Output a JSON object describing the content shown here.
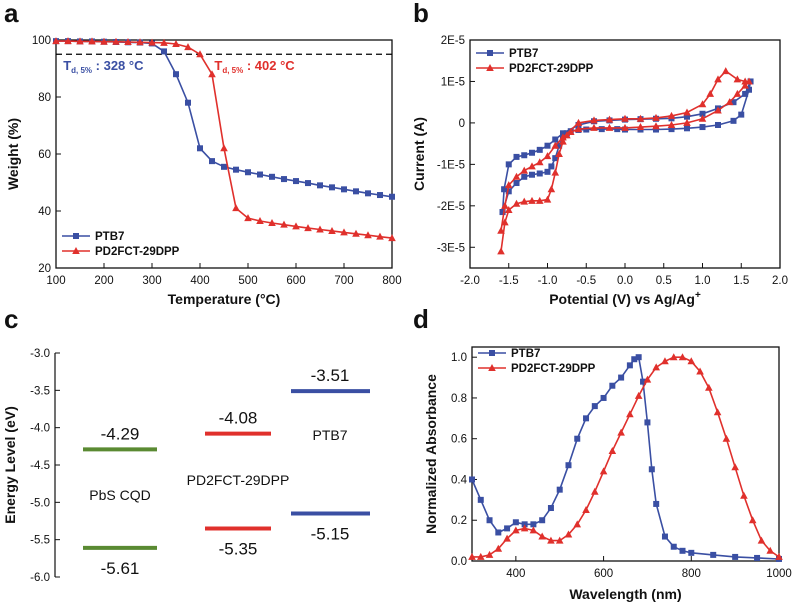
{
  "figure": {
    "panel_labels": [
      "a",
      "b",
      "c",
      "d"
    ]
  },
  "chart_data": [
    {
      "panel": "a",
      "type": "line",
      "xlabel": "Temperature (°C)",
      "ylabel": "Weight (%)",
      "xlim": [
        100,
        800
      ],
      "ylim": [
        20,
        100
      ],
      "xticks": [
        100,
        200,
        300,
        400,
        500,
        600,
        700,
        800
      ],
      "yticks": [
        20,
        40,
        60,
        80,
        100
      ],
      "reference_line": {
        "y": 95,
        "style": "dashed",
        "color": "#000000"
      },
      "annotations": [
        {
          "main": "T",
          "sub": "d, 5%",
          "rest": " : 328 °C",
          "color": "#3a4fa3",
          "x": 115,
          "y": 89.5
        },
        {
          "main": "T",
          "sub": "d, 5%",
          "rest": " : 402 °C",
          "color": "#e0302c",
          "x": 430,
          "y": 89.5
        }
      ],
      "legend_position": "bottom-left",
      "series": [
        {
          "name": "PTB7",
          "color": "#3a4fa3",
          "marker": "square",
          "x": [
            100,
            125,
            150,
            175,
            200,
            225,
            250,
            275,
            300,
            325,
            350,
            375,
            400,
            425,
            450,
            475,
            500,
            525,
            550,
            575,
            600,
            625,
            650,
            675,
            700,
            725,
            750,
            775,
            800
          ],
          "y": [
            99.6,
            99.6,
            99.5,
            99.5,
            99.4,
            99.3,
            99.2,
            99.1,
            98.8,
            96,
            88,
            78,
            62,
            57.5,
            55.5,
            54.5,
            53.6,
            52.8,
            52,
            51.2,
            50.5,
            49.8,
            49,
            48.3,
            47.6,
            46.9,
            46.2,
            45.6,
            45
          ]
        },
        {
          "name": "PD2FCT-29DPP",
          "color": "#e0302c",
          "marker": "triangle",
          "x": [
            100,
            125,
            150,
            175,
            200,
            225,
            250,
            275,
            300,
            325,
            350,
            375,
            400,
            425,
            450,
            475,
            500,
            525,
            550,
            575,
            600,
            625,
            650,
            675,
            700,
            725,
            750,
            775,
            800
          ],
          "y": [
            99.6,
            99.6,
            99.5,
            99.5,
            99.4,
            99.4,
            99.3,
            99.2,
            99.1,
            99,
            98.6,
            97.5,
            95,
            88,
            62,
            41,
            37.5,
            36.5,
            35.8,
            35.2,
            34.6,
            34,
            33.5,
            33,
            32.5,
            32,
            31.5,
            31,
            30.5
          ]
        }
      ]
    },
    {
      "panel": "b",
      "type": "line",
      "xlabel": "Potential (V) vs Ag/Ag",
      "xlabel_sup": "+",
      "ylabel": "Current (A)",
      "xlim": [
        -2.0,
        2.0
      ],
      "ylim": [
        -3.5e-05,
        2e-05
      ],
      "xticks": [
        -2.0,
        -1.5,
        -1.0,
        -0.5,
        0.0,
        0.5,
        1.0,
        1.5,
        2.0
      ],
      "xtick_labels": [
        "-2.0",
        "-1.5",
        "-1.0",
        "-0.5",
        "0.0",
        "0.5",
        "1.0",
        "1.5",
        "2.0"
      ],
      "yticks": [
        -3e-05,
        -2e-05,
        -1e-05,
        0,
        1e-05,
        2e-05
      ],
      "ytick_labels": [
        "-3E-5",
        "-2E-5",
        "-1E-5",
        "0",
        "1E-5",
        "2E-5"
      ],
      "legend_position": "top-left",
      "series": [
        {
          "name": "PTB7",
          "color": "#3a4fa3",
          "marker": "square",
          "x": [
            -1.58,
            -1.5,
            -1.4,
            -1.3,
            -1.2,
            -1.1,
            -1.0,
            -0.95,
            -0.9,
            -0.85,
            -0.8,
            -0.75,
            -0.7,
            -0.6,
            -0.5,
            -0.3,
            -0.1,
            0.0,
            0.2,
            0.4,
            0.6,
            0.8,
            1.0,
            1.2,
            1.4,
            1.5,
            1.6,
            1.62,
            1.55,
            1.4,
            1.2,
            1.0,
            0.8,
            0.6,
            0.4,
            0.2,
            0.0,
            -0.2,
            -0.4,
            -0.6,
            -0.8,
            -0.9,
            -1.0,
            -1.1,
            -1.2,
            -1.3,
            -1.4,
            -1.5,
            -1.56,
            -1.58
          ],
          "y": [
            -2.15e-05,
            -1.65e-05,
            -1.45e-05,
            -1.3e-05,
            -1.25e-05,
            -1.22e-05,
            -1.18e-05,
            -1.05e-05,
            -8.5e-06,
            -5.5e-06,
            -3.5e-06,
            -2.5e-06,
            -2e-06,
            -1.7e-06,
            -1.6e-06,
            -1.5e-06,
            -1.5e-06,
            -1.6e-06,
            -1.6e-06,
            -1.6e-06,
            -1.5e-06,
            -1.3e-06,
            -1e-06,
            -5e-07,
            5e-07,
            2e-06,
            8e-06,
            1e-05,
            7e-06,
            5e-06,
            3.5e-06,
            2.2e-06,
            1.5e-06,
            1.1e-06,
            1e-06,
            9e-07,
            8e-07,
            6e-07,
            4e-07,
            -5e-07,
            -2.5e-06,
            -4e-06,
            -5.5e-06,
            -6.5e-06,
            -7.2e-06,
            -7.8e-06,
            -8.2e-06,
            -1e-05,
            -1.6e-05,
            -2.15e-05
          ]
        },
        {
          "name": "PD2FCT-29DPP",
          "color": "#e0302c",
          "marker": "triangle",
          "x": [
            -1.6,
            -1.55,
            -1.5,
            -1.4,
            -1.3,
            -1.2,
            -1.1,
            -1.0,
            -0.95,
            -0.9,
            -0.85,
            -0.8,
            -0.75,
            -0.7,
            -0.6,
            -0.4,
            -0.2,
            0.0,
            0.2,
            0.4,
            0.6,
            0.8,
            1.0,
            1.2,
            1.35,
            1.45,
            1.55,
            1.6,
            1.55,
            1.45,
            1.3,
            1.2,
            1.1,
            1.0,
            0.8,
            0.6,
            0.4,
            0.2,
            0.0,
            -0.2,
            -0.4,
            -0.6,
            -0.8,
            -0.9,
            -1.0,
            -1.1,
            -1.2,
            -1.3,
            -1.4,
            -1.5,
            -1.55,
            -1.6
          ],
          "y": [
            -3.1e-05,
            -2.4e-05,
            -2.1e-05,
            -1.95e-05,
            -1.9e-05,
            -1.88e-05,
            -1.88e-05,
            -1.85e-05,
            -1.6e-05,
            -1.2e-05,
            -7.5e-06,
            -4.5e-06,
            -3e-06,
            -2.2e-06,
            -1.5e-06,
            -1.2e-06,
            -1.2e-06,
            -1.2e-06,
            -1e-06,
            -8e-07,
            -5e-07,
            0.0,
            1e-06,
            3e-06,
            5e-06,
            7e-06,
            9e-06,
            1e-05,
            1e-05,
            1.05e-05,
            1.25e-05,
            1.05e-05,
            7e-06,
            4.5e-06,
            2.5e-06,
            1.7e-06,
            1.2e-06,
            1e-06,
            1e-06,
            8e-07,
            6e-07,
            0.0,
            -3.5e-06,
            -5.5e-06,
            -8e-06,
            -9.5e-06,
            -1.05e-05,
            -1.15e-05,
            -1.3e-05,
            -1.5e-05,
            -2e-05,
            -2.6e-05
          ]
        }
      ]
    },
    {
      "panel": "c",
      "type": "bar",
      "ylabel": "Energy Level (eV)",
      "ylim": [
        -6.0,
        -3.0
      ],
      "yticks": [
        -6.0,
        -5.5,
        -5.0,
        -4.5,
        -4.0,
        -3.5,
        -3.0
      ],
      "ytick_labels": [
        "-6.0",
        "-5.5",
        "-5.0",
        "-4.5",
        "-4.0",
        "-3.5",
        "-3.0"
      ],
      "materials": [
        {
          "name": "PbS CQD",
          "color": "#5a8a32",
          "upper": -4.29,
          "lower": -5.61,
          "upper_label": "-4.29",
          "lower_label": "-5.61"
        },
        {
          "name": "PD2FCT-29DPP",
          "color": "#e0302c",
          "upper": -4.08,
          "lower": -5.35,
          "upper_label": "-4.08",
          "lower_label": "-5.35"
        },
        {
          "name": "PTB7",
          "color": "#3a4fa3",
          "upper": -3.51,
          "lower": -5.15,
          "upper_label": "-3.51",
          "lower_label": "-5.15"
        }
      ]
    },
    {
      "panel": "d",
      "type": "line",
      "xlabel": "Wavelength (nm)",
      "ylabel": "Normalized Absorbance",
      "xlim": [
        300,
        1000
      ],
      "ylim": [
        0,
        1.05
      ],
      "xticks": [
        400,
        600,
        800,
        1000
      ],
      "yticks": [
        0,
        0.2,
        0.4,
        0.6,
        0.8,
        1.0
      ],
      "ytick_labels": [
        "0.0",
        "0.2",
        "0.4",
        "0.6",
        "0.8",
        "1.0"
      ],
      "legend_position": "top-left",
      "series": [
        {
          "name": "PTB7",
          "color": "#3a4fa3",
          "marker": "square",
          "x": [
            300,
            320,
            340,
            360,
            380,
            400,
            420,
            440,
            460,
            480,
            500,
            520,
            540,
            560,
            580,
            600,
            620,
            640,
            660,
            670,
            680,
            690,
            700,
            710,
            720,
            740,
            760,
            780,
            800,
            850,
            900,
            950,
            1000
          ],
          "y": [
            0.4,
            0.3,
            0.2,
            0.14,
            0.16,
            0.19,
            0.18,
            0.18,
            0.2,
            0.26,
            0.35,
            0.47,
            0.6,
            0.7,
            0.76,
            0.8,
            0.86,
            0.9,
            0.96,
            0.99,
            1.0,
            0.88,
            0.68,
            0.45,
            0.28,
            0.12,
            0.07,
            0.05,
            0.04,
            0.03,
            0.02,
            0.015,
            0.01
          ]
        },
        {
          "name": "PD2FCT-29DPP",
          "color": "#e0302c",
          "marker": "triangle",
          "x": [
            300,
            320,
            340,
            360,
            380,
            400,
            420,
            440,
            460,
            480,
            500,
            520,
            540,
            560,
            580,
            600,
            620,
            640,
            660,
            680,
            700,
            720,
            740,
            760,
            780,
            800,
            820,
            840,
            860,
            880,
            900,
            920,
            940,
            960,
            980,
            1000
          ],
          "y": [
            0.02,
            0.02,
            0.03,
            0.06,
            0.11,
            0.15,
            0.16,
            0.15,
            0.12,
            0.1,
            0.1,
            0.13,
            0.18,
            0.25,
            0.34,
            0.44,
            0.54,
            0.63,
            0.72,
            0.81,
            0.89,
            0.95,
            0.98,
            1.0,
            1.0,
            0.98,
            0.93,
            0.85,
            0.73,
            0.6,
            0.46,
            0.32,
            0.2,
            0.1,
            0.05,
            0.02
          ]
        }
      ]
    }
  ]
}
